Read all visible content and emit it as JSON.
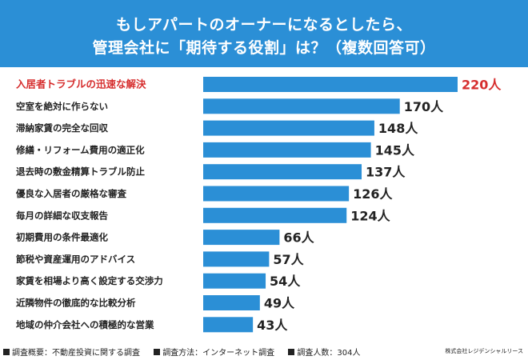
{
  "header": {
    "title_line1": "もしアパートのオーナーになるとしたら、",
    "title_line2": "管理会社に「期待する役割」は？（複数回答可）"
  },
  "colors": {
    "header_bg": "#2b8fd6",
    "bar": "#2b8fd6",
    "highlight": "#d62e2e",
    "text": "#222222"
  },
  "chart_data": {
    "type": "bar",
    "orientation": "horizontal",
    "categories": [
      "入居者トラブルの迅速な解決",
      "空室を絶対に作らない",
      "滞納家賃の完全な回収",
      "修繕・リフォーム費用の適正化",
      "退去時の敷金精算トラブル防止",
      "優良な入居者の厳格な審査",
      "毎月の詳細な収支報告",
      "初期費用の条件最適化",
      "節税や資産運用のアドバイス",
      "家賃を相場より高く設定する交渉力",
      "近隣物件の徹底的な比較分析",
      "地域の仲介会社への積極的な営業"
    ],
    "values": [
      220,
      170,
      148,
      145,
      137,
      126,
      124,
      66,
      57,
      54,
      49,
      43
    ],
    "value_labels": [
      "220人",
      "170人",
      "148人",
      "145人",
      "137人",
      "126人",
      "124人",
      "66人",
      "57人",
      "54人",
      "49人",
      "43人"
    ],
    "highlight_index": 0,
    "grid": false,
    "legend": "none"
  },
  "footer": {
    "overview": "調査概要：不動産投資に関する調査",
    "method": "調査方法：インターネット調査",
    "respondents": "調査人数：304人",
    "company": "株式会社レジデンシャルリース"
  }
}
